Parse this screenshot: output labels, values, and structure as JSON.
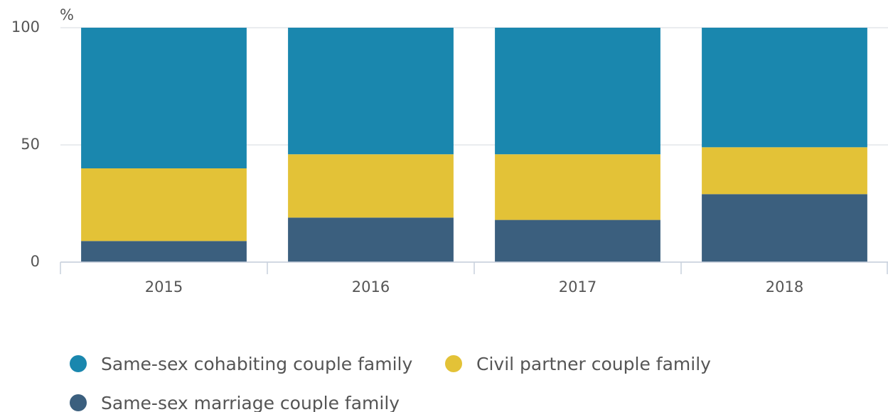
{
  "chart_data": {
    "type": "bar",
    "stacked": true,
    "y_label": "%",
    "categories": [
      "2015",
      "2016",
      "2017",
      "2018"
    ],
    "series": [
      {
        "name": "Same-sex cohabiting couple family",
        "color": "#1a87ae",
        "values": [
          60,
          54,
          54,
          51
        ]
      },
      {
        "name": "Civil partner couple family",
        "color": "#e3c237",
        "values": [
          31,
          27,
          28,
          20
        ]
      },
      {
        "name": "Same-sex marriage couple family",
        "color": "#3b5f7e",
        "values": [
          9,
          19,
          18,
          29
        ]
      }
    ],
    "ylim": [
      0,
      100
    ],
    "yticks": [
      0,
      50,
      100
    ],
    "grid": true
  }
}
